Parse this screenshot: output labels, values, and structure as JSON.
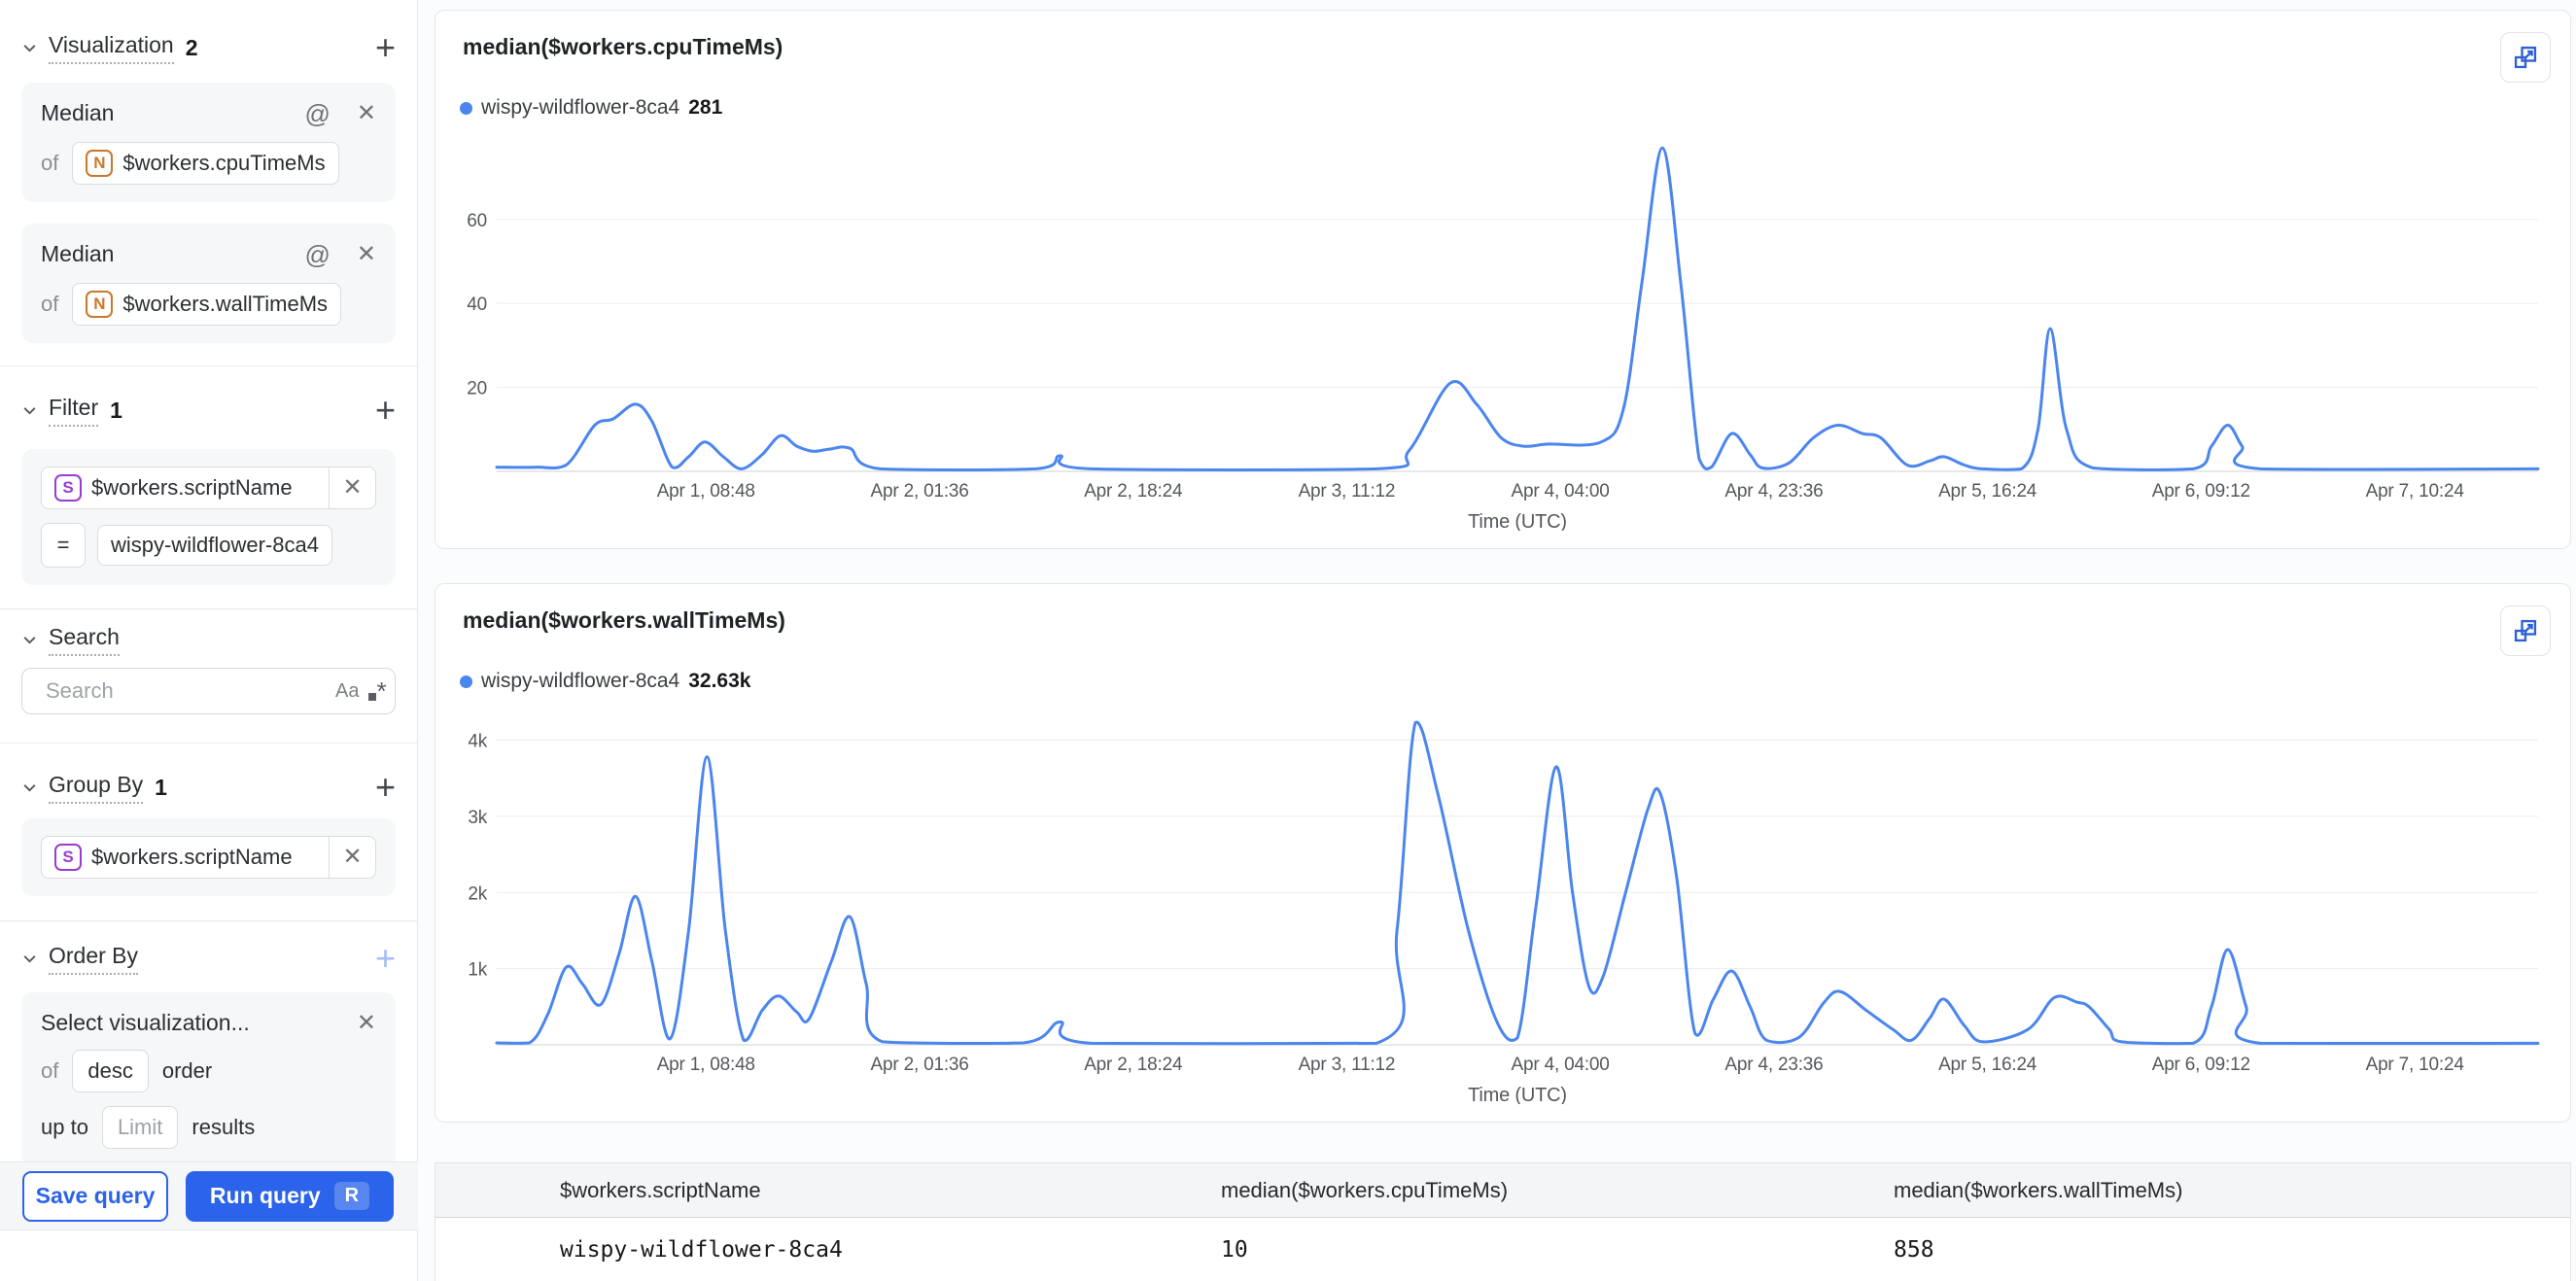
{
  "colors": {
    "accent_blue": "#2b63ea",
    "line_blue": "#4b85ee",
    "number_type": "#c9792a",
    "string_type": "#9a3bd1"
  },
  "icons": {
    "at": "@",
    "close": "✕",
    "add": "+",
    "match_case": "Aa",
    "regex_star": "*"
  },
  "sidebar": {
    "visualization": {
      "label": "Visualization",
      "count": "2",
      "cards": [
        {
          "title": "Median",
          "of_label": "of",
          "field": "$workers.cpuTimeMs",
          "field_type": "N"
        },
        {
          "title": "Median",
          "of_label": "of",
          "field": "$workers.wallTimeMs",
          "field_type": "N"
        }
      ]
    },
    "filter": {
      "label": "Filter",
      "count": "1",
      "field": "$workers.scriptName",
      "field_type": "S",
      "operator": "=",
      "value": "wispy-wildflower-8ca4"
    },
    "search": {
      "label": "Search",
      "placeholder": "Search"
    },
    "group_by": {
      "label": "Group By",
      "count": "1",
      "field": "$workers.scriptName",
      "field_type": "S"
    },
    "order_by": {
      "label": "Order By",
      "selection_placeholder": "Select visualization...",
      "of_label": "of",
      "direction": "desc",
      "order_label": "order",
      "up_to_label": "up to",
      "limit_placeholder": "Limit",
      "results_label": "results"
    },
    "footer": {
      "save_label": "Save query",
      "run_label": "Run query",
      "run_shortcut": "R"
    }
  },
  "charts": [
    {
      "title": "median($workers.cpuTimeMs)",
      "legend_name": "wispy-wildflower-8ca4",
      "legend_value": "281"
    },
    {
      "title": "median($workers.wallTimeMs)",
      "legend_name": "wispy-wildflower-8ca4",
      "legend_value": "32.63k"
    }
  ],
  "chart_data": [
    {
      "type": "line",
      "title": "median($workers.cpuTimeMs)",
      "series_name": "wispy-wildflower-8ca4",
      "color": "#4b85ee",
      "xlabel": "Time (UTC)",
      "ylim": [
        0,
        78
      ],
      "grid": true,
      "legend_position": "top-left",
      "y_ticks": [
        {
          "v": 20,
          "label": "20"
        },
        {
          "v": 40,
          "label": "40"
        },
        {
          "v": 60,
          "label": "60"
        }
      ],
      "x_ticks": [
        {
          "pos": 0.1025,
          "label": "Apr 1, 08:48"
        },
        {
          "pos": 0.2072,
          "label": "Apr 2, 01:36"
        },
        {
          "pos": 0.3118,
          "label": "Apr 2, 18:24"
        },
        {
          "pos": 0.4164,
          "label": "Apr 3, 11:12"
        },
        {
          "pos": 0.521,
          "label": "Apr 4, 04:00"
        },
        {
          "pos": 0.6257,
          "label": "Apr 4, 23:36"
        },
        {
          "pos": 0.7303,
          "label": "Apr 5, 16:24"
        },
        {
          "pos": 0.8349,
          "label": "Apr 6, 09:12"
        },
        {
          "pos": 0.9396,
          "label": "Apr 7, 10:24"
        }
      ],
      "points": [
        [
          0,
          1
        ],
        [
          0.019,
          1
        ],
        [
          0.034,
          1.5
        ],
        [
          0.048,
          11
        ],
        [
          0.057,
          12.5
        ],
        [
          0.068,
          16
        ],
        [
          0.076,
          12
        ],
        [
          0.086,
          1
        ],
        [
          0.094,
          3.5
        ],
        [
          0.102,
          7
        ],
        [
          0.111,
          3.5
        ],
        [
          0.12,
          0.6
        ],
        [
          0.13,
          4
        ],
        [
          0.139,
          8.5
        ],
        [
          0.147,
          6
        ],
        [
          0.155,
          4.8
        ],
        [
          0.163,
          5.3
        ],
        [
          0.173,
          5.5
        ],
        [
          0.188,
          0.6
        ],
        [
          0.264,
          0.6
        ],
        [
          0.276,
          3.7
        ],
        [
          0.291,
          0.6
        ],
        [
          0.431,
          0.6
        ],
        [
          0.447,
          5
        ],
        [
          0.467,
          21
        ],
        [
          0.48,
          16
        ],
        [
          0.492,
          8
        ],
        [
          0.503,
          6
        ],
        [
          0.515,
          6.5
        ],
        [
          0.541,
          7
        ],
        [
          0.552,
          15
        ],
        [
          0.561,
          45
        ],
        [
          0.571,
          77
        ],
        [
          0.58,
          45
        ],
        [
          0.589,
          3
        ],
        [
          0.595,
          1
        ],
        [
          0.605,
          9
        ],
        [
          0.614,
          4
        ],
        [
          0.62,
          0.8
        ],
        [
          0.633,
          2
        ],
        [
          0.645,
          8
        ],
        [
          0.657,
          11
        ],
        [
          0.669,
          9
        ],
        [
          0.678,
          8
        ],
        [
          0.691,
          1.5
        ],
        [
          0.702,
          2.5
        ],
        [
          0.709,
          3.5
        ],
        [
          0.719,
          1.5
        ],
        [
          0.728,
          0.6
        ],
        [
          0.747,
          0.6
        ],
        [
          0.755,
          10
        ],
        [
          0.761,
          34
        ],
        [
          0.769,
          10
        ],
        [
          0.782,
          0.8
        ],
        [
          0.831,
          0.6
        ],
        [
          0.84,
          6
        ],
        [
          0.848,
          11
        ],
        [
          0.855,
          6
        ],
        [
          0.864,
          0.6
        ],
        [
          1,
          0.6
        ]
      ]
    },
    {
      "type": "line",
      "title": "median($workers.wallTimeMs)",
      "series_name": "wispy-wildflower-8ca4",
      "color": "#4b85ee",
      "xlabel": "Time (UTC)",
      "ylim": [
        0,
        4300
      ],
      "grid": true,
      "legend_position": "top-left",
      "y_ticks": [
        {
          "v": 1000,
          "label": "1k"
        },
        {
          "v": 2000,
          "label": "2k"
        },
        {
          "v": 3000,
          "label": "3k"
        },
        {
          "v": 4000,
          "label": "4k"
        }
      ],
      "x_ticks": [
        {
          "pos": 0.1025,
          "label": "Apr 1, 08:48"
        },
        {
          "pos": 0.2072,
          "label": "Apr 2, 01:36"
        },
        {
          "pos": 0.3118,
          "label": "Apr 2, 18:24"
        },
        {
          "pos": 0.4164,
          "label": "Apr 3, 11:12"
        },
        {
          "pos": 0.521,
          "label": "Apr 4, 04:00"
        },
        {
          "pos": 0.6257,
          "label": "Apr 4, 23:36"
        },
        {
          "pos": 0.7303,
          "label": "Apr 5, 16:24"
        },
        {
          "pos": 0.8349,
          "label": "Apr 6, 09:12"
        },
        {
          "pos": 0.9396,
          "label": "Apr 7, 10:24"
        }
      ],
      "points": [
        [
          0,
          25
        ],
        [
          0.016,
          25
        ],
        [
          0.025,
          400
        ],
        [
          0.034,
          1020
        ],
        [
          0.042,
          800
        ],
        [
          0.051,
          530
        ],
        [
          0.06,
          1200
        ],
        [
          0.068,
          1950
        ],
        [
          0.076,
          1100
        ],
        [
          0.085,
          80
        ],
        [
          0.094,
          1500
        ],
        [
          0.103,
          3780
        ],
        [
          0.112,
          1500
        ],
        [
          0.121,
          60
        ],
        [
          0.13,
          450
        ],
        [
          0.138,
          640
        ],
        [
          0.147,
          430
        ],
        [
          0.153,
          340
        ],
        [
          0.164,
          1100
        ],
        [
          0.173,
          1680
        ],
        [
          0.181,
          800
        ],
        [
          0.189,
          40
        ],
        [
          0.258,
          25
        ],
        [
          0.276,
          300
        ],
        [
          0.291,
          20
        ],
        [
          0.431,
          20
        ],
        [
          0.441,
          1500
        ],
        [
          0.45,
          4230
        ],
        [
          0.461,
          3300
        ],
        [
          0.476,
          1500
        ],
        [
          0.49,
          300
        ],
        [
          0.5,
          90
        ],
        [
          0.509,
          1800
        ],
        [
          0.519,
          3650
        ],
        [
          0.527,
          2000
        ],
        [
          0.535,
          770
        ],
        [
          0.542,
          900
        ],
        [
          0.553,
          2000
        ],
        [
          0.564,
          3100
        ],
        [
          0.57,
          3300
        ],
        [
          0.578,
          2200
        ],
        [
          0.587,
          150
        ],
        [
          0.596,
          600
        ],
        [
          0.605,
          970
        ],
        [
          0.614,
          500
        ],
        [
          0.622,
          60
        ],
        [
          0.638,
          100
        ],
        [
          0.65,
          550
        ],
        [
          0.658,
          700
        ],
        [
          0.671,
          450
        ],
        [
          0.684,
          200
        ],
        [
          0.693,
          60
        ],
        [
          0.702,
          350
        ],
        [
          0.709,
          600
        ],
        [
          0.719,
          250
        ],
        [
          0.728,
          40
        ],
        [
          0.75,
          200
        ],
        [
          0.763,
          620
        ],
        [
          0.774,
          560
        ],
        [
          0.78,
          500
        ],
        [
          0.79,
          200
        ],
        [
          0.796,
          40
        ],
        [
          0.831,
          20
        ],
        [
          0.84,
          500
        ],
        [
          0.848,
          1250
        ],
        [
          0.857,
          500
        ],
        [
          0.864,
          20
        ],
        [
          1,
          20
        ]
      ]
    }
  ],
  "table": {
    "headers": [
      "$workers.scriptName",
      "median($workers.cpuTimeMs)",
      "median($workers.wallTimeMs)"
    ],
    "rows": [
      {
        "series_color": "#4b85ee",
        "script_name": "wispy-wildflower-8ca4",
        "cpu": "10",
        "wall": "858"
      }
    ]
  }
}
